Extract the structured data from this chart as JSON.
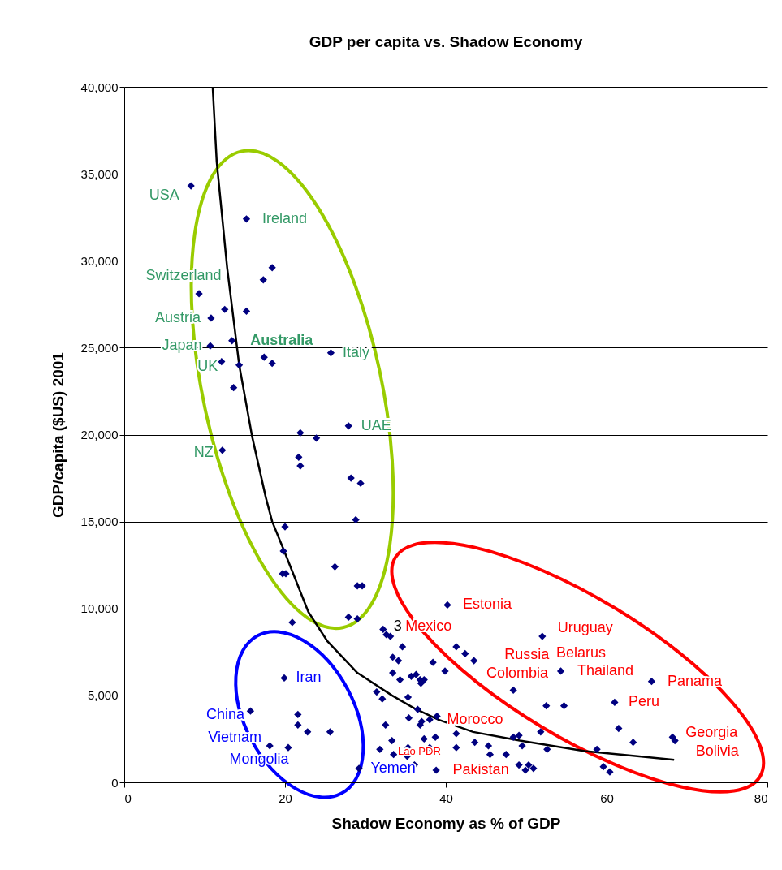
{
  "chart_data": {
    "type": "scatter",
    "title": "GDP per capita vs. Shadow Economy",
    "xlabel": "Shadow Economy as % of GDP",
    "ylabel": "GDP/capita ($US) 2001",
    "xlim": [
      0,
      80
    ],
    "xticks": [
      0,
      20,
      40,
      60,
      80
    ],
    "ylim": [
      0,
      40000
    ],
    "yticks": [
      0,
      {
        "value": 5000,
        "label": "5,000"
      },
      {
        "value": 10000,
        "label": "10,000"
      },
      {
        "value": 15000,
        "label": "15,000"
      },
      {
        "value": 20000,
        "label": "20,000"
      },
      {
        "value": 25000,
        "label": "25,000"
      },
      {
        "value": 30000,
        "label": "30,000"
      },
      {
        "value": 35000,
        "label": "35,000"
      },
      {
        "value": 40000,
        "label": "40,000"
      }
    ],
    "grid": "y",
    "series": [
      {
        "marker": "diamond",
        "color": "#000080",
        "x": [
          8.3,
          15.2,
          18.4,
          17.3,
          9.3,
          12.5,
          15.2,
          10.8,
          13.4,
          10.7,
          17.4,
          18.4,
          12.1,
          14.3,
          25.7,
          13.6,
          27.9,
          21.9,
          23.9,
          12.2,
          21.7,
          21.9,
          28.2,
          29.4,
          28.8,
          20.0,
          19.8,
          26.2,
          19.7,
          20.1,
          29.0,
          29.6,
          20.9,
          27.9,
          29.0,
          40.2,
          32.2,
          32.6,
          33.1,
          34.6,
          33.4,
          34.1,
          38.4,
          39.9,
          33.4,
          34.3,
          35.7,
          36.3,
          36.8,
          37.3,
          36.9,
          41.3,
          42.4,
          43.5,
          52.0,
          54.3,
          48.4,
          31.4,
          32.1,
          35.3,
          36.5,
          35.4,
          37.0,
          36.8,
          38.0,
          38.9,
          32.5,
          41.3,
          37.3,
          38.7,
          33.3,
          43.6,
          45.3,
          49.1,
          49.5,
          51.8,
          52.6,
          31.8,
          33.5,
          35.3,
          38.0,
          41.3,
          35.2,
          36.1,
          38.8,
          49.1,
          49.9,
          50.3,
          50.9,
          48.4,
          47.5,
          45.5,
          65.6,
          54.7,
          52.5,
          61.0,
          61.5,
          63.3,
          68.2,
          68.5,
          58.8,
          59.6,
          60.4,
          19.9,
          15.7,
          21.6,
          21.6,
          22.8,
          25.6,
          18.1,
          20.4,
          29.2
        ],
        "values": [
          34300,
          32400,
          29600,
          28900,
          28100,
          27200,
          27100,
          26700,
          25400,
          25100,
          24450,
          24100,
          24200,
          24000,
          24700,
          22700,
          20500,
          20100,
          19800,
          19100,
          18700,
          18200,
          17500,
          17200,
          15100,
          14700,
          13300,
          12400,
          12000,
          12000,
          11300,
          11300,
          9200,
          9500,
          9400,
          10200,
          8800,
          8500,
          8400,
          7800,
          7200,
          7000,
          6900,
          6400,
          6300,
          5900,
          6100,
          6200,
          5900,
          5900,
          5700,
          7800,
          7400,
          7000,
          8400,
          6400,
          5300,
          5200,
          4800,
          4900,
          4200,
          3700,
          3500,
          3300,
          3600,
          3800,
          3300,
          2800,
          2500,
          2600,
          2400,
          2300,
          2100,
          2700,
          2100,
          2900,
          1900,
          1900,
          1600,
          2000,
          2000,
          2000,
          1500,
          1000,
          700,
          1000,
          700,
          1000,
          800,
          2600,
          1600,
          1600,
          5800,
          4400,
          4400,
          4600,
          3100,
          2300,
          2600,
          2400,
          1900,
          900,
          600,
          6000,
          4100,
          3900,
          3300,
          2900,
          2900,
          2100,
          2000,
          800
        ]
      },
      {
        "type": "line",
        "color": "#000000",
        "x": [
          11.0,
          11.5,
          12.8,
          14.3,
          15.9,
          17.6,
          18.4,
          19.9,
          22.9,
          25.3,
          29.0,
          33.3,
          36.1,
          39.1,
          43.4,
          49.2,
          57.3,
          68.4
        ],
        "values": [
          40000,
          35700,
          29600,
          24000,
          19900,
          16400,
          15000,
          13300,
          9800,
          8100,
          6300,
          5000,
          4250,
          3600,
          2900,
          2400,
          1800,
          1300
        ]
      }
    ],
    "annotations": [
      {
        "text": "USA",
        "x": 8.3,
        "y": 34300
      },
      {
        "text": "Ireland",
        "x": 15.2,
        "y": 32400
      },
      {
        "text": "Switzerland",
        "x": 9.3,
        "y": 28100
      },
      {
        "text": "Austria",
        "x": 10.8,
        "y": 26700
      },
      {
        "text": "Japan",
        "x": 10.7,
        "y": 25100
      },
      {
        "text": "UK",
        "x": 12.1,
        "y": 24200
      },
      {
        "text": "Australia",
        "x": 13.4,
        "y": 25400
      },
      {
        "text": "Italy",
        "x": 25.7,
        "y": 24700
      },
      {
        "text": "UAE",
        "x": 27.9,
        "y": 20500
      },
      {
        "text": "NZ",
        "x": 12.2,
        "y": 19100
      },
      {
        "text": "Iran",
        "x": 19.9,
        "y": 6000
      },
      {
        "text": "China",
        "x": 15.7,
        "y": 4100
      },
      {
        "text": "Vietnam",
        "x": 18.1,
        "y": 2100
      },
      {
        "text": "Mongolia",
        "x": 20.4,
        "y": 2000
      },
      {
        "text": "Yemen",
        "x": 29.2,
        "y": 800
      },
      {
        "text": "Estonia",
        "x": 40.2,
        "y": 10200
      },
      {
        "text": "3",
        "x": 32.2,
        "y": 8800
      },
      {
        "text": "Mexico",
        "x": 33.1,
        "y": 8400
      },
      {
        "text": "Uruguay",
        "x": 52.0,
        "y": 8400
      },
      {
        "text": "Russia",
        "x": 43.5,
        "y": 7000
      },
      {
        "text": "Belarus",
        "x": 54.3,
        "y": 6400
      },
      {
        "text": "Colombia",
        "x": 39.9,
        "y": 6400
      },
      {
        "text": "Thailand",
        "x": 54.3,
        "y": 6400
      },
      {
        "text": "Panama",
        "x": 65.6,
        "y": 5800
      },
      {
        "text": "Peru",
        "x": 61.0,
        "y": 4600
      },
      {
        "text": "Georgia",
        "x": 68.2,
        "y": 2600
      },
      {
        "text": "Bolivia",
        "x": 68.5,
        "y": 2400
      },
      {
        "text": "Morocco",
        "x": 38.9,
        "y": 3800
      },
      {
        "text": "Lao PDR",
        "x": 36.1,
        "y": 1000
      },
      {
        "text": "Pakistan",
        "x": 38.8,
        "y": 700
      }
    ]
  }
}
